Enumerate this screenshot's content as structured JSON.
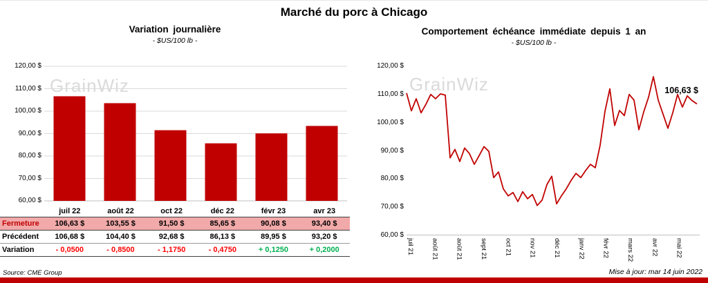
{
  "page": {
    "title": "Marché du porc à Chicago",
    "source": "Source: CME Group",
    "updated": "Mise à jour: mar 14 juin 2022",
    "watermark": "GrainWiz",
    "accent_color": "#C00000"
  },
  "chart_data": [
    {
      "type": "bar",
      "title": "Variation journalière",
      "subtitle": "- $US/100 lb -",
      "categories": [
        "juil 22",
        "août 22",
        "oct 22",
        "déc 22",
        "févr 23",
        "avr 23"
      ],
      "values": [
        106.63,
        103.55,
        91.5,
        85.65,
        90.08,
        93.4
      ],
      "ylim": [
        60,
        120
      ],
      "ytick_labels": [
        "120,00 $",
        "110,00 $",
        "100,00 $",
        "90,00 $",
        "80,00 $",
        "70,00 $",
        "60,00 $"
      ],
      "bar_color": "#C00000",
      "grid": true,
      "legend": "none"
    },
    {
      "type": "line",
      "title": "Comportement échéance immédiate depuis 1 an",
      "subtitle": "- $US/100 lb -",
      "xticks": [
        "juil 21",
        "août 21",
        "août 21",
        "sept 21",
        "oct 21",
        "nov 21",
        "déc 21",
        "janv 22",
        "févr 22",
        "mars 22",
        "avr 22",
        "mai 22"
      ],
      "values": [
        110.5,
        104.2,
        108.5,
        103.5,
        106.5,
        110,
        108.5,
        110.2,
        109.8,
        87.5,
        90.5,
        86.2,
        91,
        89,
        85.2,
        88.3,
        91.5,
        89.8,
        80.5,
        82.5,
        76.5,
        74,
        75.2,
        72,
        75.5,
        73,
        74.5,
        70.6,
        72.5,
        78,
        81,
        71.2,
        74,
        76.5,
        79.5,
        82,
        80.5,
        83,
        85.2,
        84,
        92,
        104,
        112,
        99,
        104.3,
        102.5,
        110,
        108,
        97.5,
        103.8,
        109,
        116.3,
        108,
        103,
        98,
        103.5,
        110,
        105.5,
        109.5,
        107.8,
        106.63
      ],
      "ylim": [
        60,
        120
      ],
      "ytick_labels": [
        "120,00 $",
        "110,00 $",
        "100,00 $",
        "90,00 $",
        "80,00 $",
        "70,00 $",
        "60,00 $"
      ],
      "line_color": "#C00000",
      "grid": false,
      "annotation": "106,63 $",
      "legend": "none"
    }
  ],
  "table": {
    "columns": [
      "juil 22",
      "août 22",
      "oct 22",
      "déc 22",
      "févr 23",
      "avr 23"
    ],
    "rows": [
      {
        "label": "Fermeture",
        "style": "close",
        "values": [
          "106,63  $",
          "103,55  $",
          "91,50  $",
          "85,65  $",
          "90,08  $",
          "93,40  $"
        ]
      },
      {
        "label": "Précédent",
        "style": "previous",
        "values": [
          "106,68  $",
          "104,40  $",
          "92,68  $",
          "86,13  $",
          "89,95  $",
          "93,20  $"
        ]
      },
      {
        "label": "Variation",
        "style": "variation",
        "values": [
          "- 0,0500",
          "- 0,8500",
          "- 1,1750",
          "- 0,4750",
          "+ 0,1250",
          "+ 0,2000"
        ],
        "signs": [
          "neg",
          "neg",
          "neg",
          "neg",
          "pos",
          "pos"
        ]
      }
    ]
  }
}
